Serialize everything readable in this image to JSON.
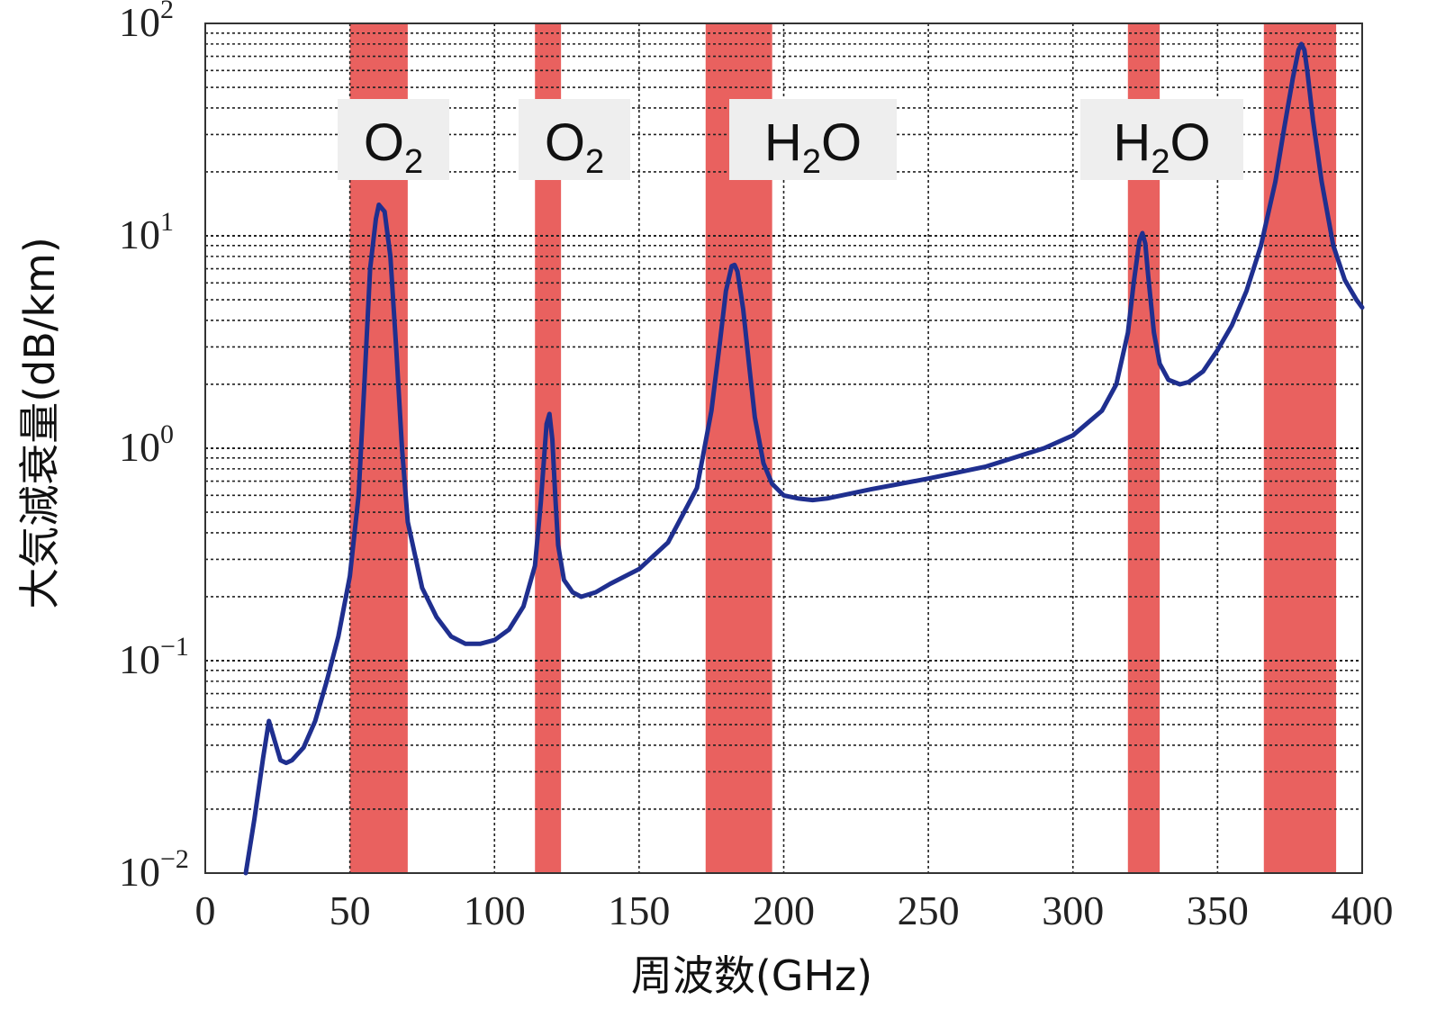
{
  "chart_data": {
    "type": "line",
    "xlabel": "周波数(GHz)",
    "ylabel": "大気減衰量(dB/km)",
    "xlim": [
      0,
      400
    ],
    "ylim": [
      0.01,
      100
    ],
    "yscale": "log",
    "grid": true,
    "x_ticks": [
      "0",
      "50",
      "100",
      "150",
      "200",
      "250",
      "300",
      "350",
      "400"
    ],
    "y_ticks": [
      {
        "base": "10",
        "exp": "−2",
        "value": 0.01
      },
      {
        "base": "10",
        "exp": "−1",
        "value": 0.1
      },
      {
        "base": "10",
        "exp": "0",
        "value": 1
      },
      {
        "base": "10",
        "exp": "1",
        "value": 10
      },
      {
        "base": "10",
        "exp": "2",
        "value": 100
      }
    ],
    "colors": {
      "line": "#1f2f8f",
      "band": "#e9615f",
      "grid": "#222222",
      "label_bg": "#eeeeee"
    },
    "bands": [
      {
        "x0": 50,
        "x1": 70,
        "label_main": "O",
        "label_sub": "2",
        "label_tail": ""
      },
      {
        "x0": 114,
        "x1": 123,
        "label_main": "O",
        "label_sub": "2",
        "label_tail": ""
      },
      {
        "x0": 173,
        "x1": 196,
        "label_main": "H",
        "label_sub": "2",
        "label_tail": "O"
      },
      {
        "x0": 319,
        "x1": 330,
        "label_main": "H",
        "label_sub": "2",
        "label_tail": "O"
      },
      {
        "x0": 366,
        "x1": 391,
        "label_main": "",
        "label_sub": "",
        "label_tail": ""
      }
    ],
    "series": [
      {
        "x": [
          14,
          17,
          20,
          22,
          24,
          26,
          28,
          30,
          34,
          38,
          42,
          46,
          50,
          53,
          55,
          57,
          59,
          60,
          62,
          64,
          66,
          68,
          70,
          75,
          80,
          85,
          90,
          95,
          100,
          105,
          110,
          114,
          116,
          118,
          119,
          120,
          121,
          122,
          124,
          127,
          130,
          135,
          140,
          150,
          160,
          170,
          175,
          178,
          180,
          182,
          183,
          184,
          186,
          188,
          190,
          193,
          196,
          200,
          205,
          210,
          215,
          220,
          230,
          250,
          270,
          290,
          300,
          310,
          315,
          319,
          321,
          323,
          324,
          325,
          326,
          328,
          330,
          333,
          337,
          340,
          345,
          350,
          355,
          360,
          365,
          370,
          373,
          376,
          378,
          379,
          380,
          381,
          383,
          386,
          390,
          394,
          398,
          400
        ],
        "y": [
          0.01,
          0.018,
          0.035,
          0.052,
          0.042,
          0.034,
          0.033,
          0.034,
          0.039,
          0.052,
          0.08,
          0.13,
          0.25,
          0.6,
          2.0,
          7.0,
          12.0,
          14.0,
          13.0,
          8.0,
          3.0,
          1.0,
          0.45,
          0.22,
          0.16,
          0.13,
          0.12,
          0.12,
          0.125,
          0.14,
          0.18,
          0.28,
          0.55,
          1.3,
          1.45,
          1.1,
          0.6,
          0.35,
          0.24,
          0.21,
          0.2,
          0.21,
          0.23,
          0.27,
          0.36,
          0.65,
          1.5,
          3.2,
          5.5,
          7.2,
          7.3,
          6.8,
          4.5,
          2.5,
          1.4,
          0.85,
          0.68,
          0.6,
          0.58,
          0.57,
          0.58,
          0.6,
          0.64,
          0.72,
          0.82,
          1.0,
          1.15,
          1.5,
          2.0,
          3.5,
          6.0,
          9.5,
          10.3,
          9.2,
          6.5,
          3.5,
          2.5,
          2.1,
          2.0,
          2.05,
          2.3,
          2.9,
          3.8,
          5.5,
          9.0,
          18.0,
          32.0,
          55.0,
          75.0,
          80.0,
          75.0,
          60.0,
          35.0,
          18.0,
          9.0,
          6.2,
          5.0,
          4.6
        ]
      }
    ]
  }
}
